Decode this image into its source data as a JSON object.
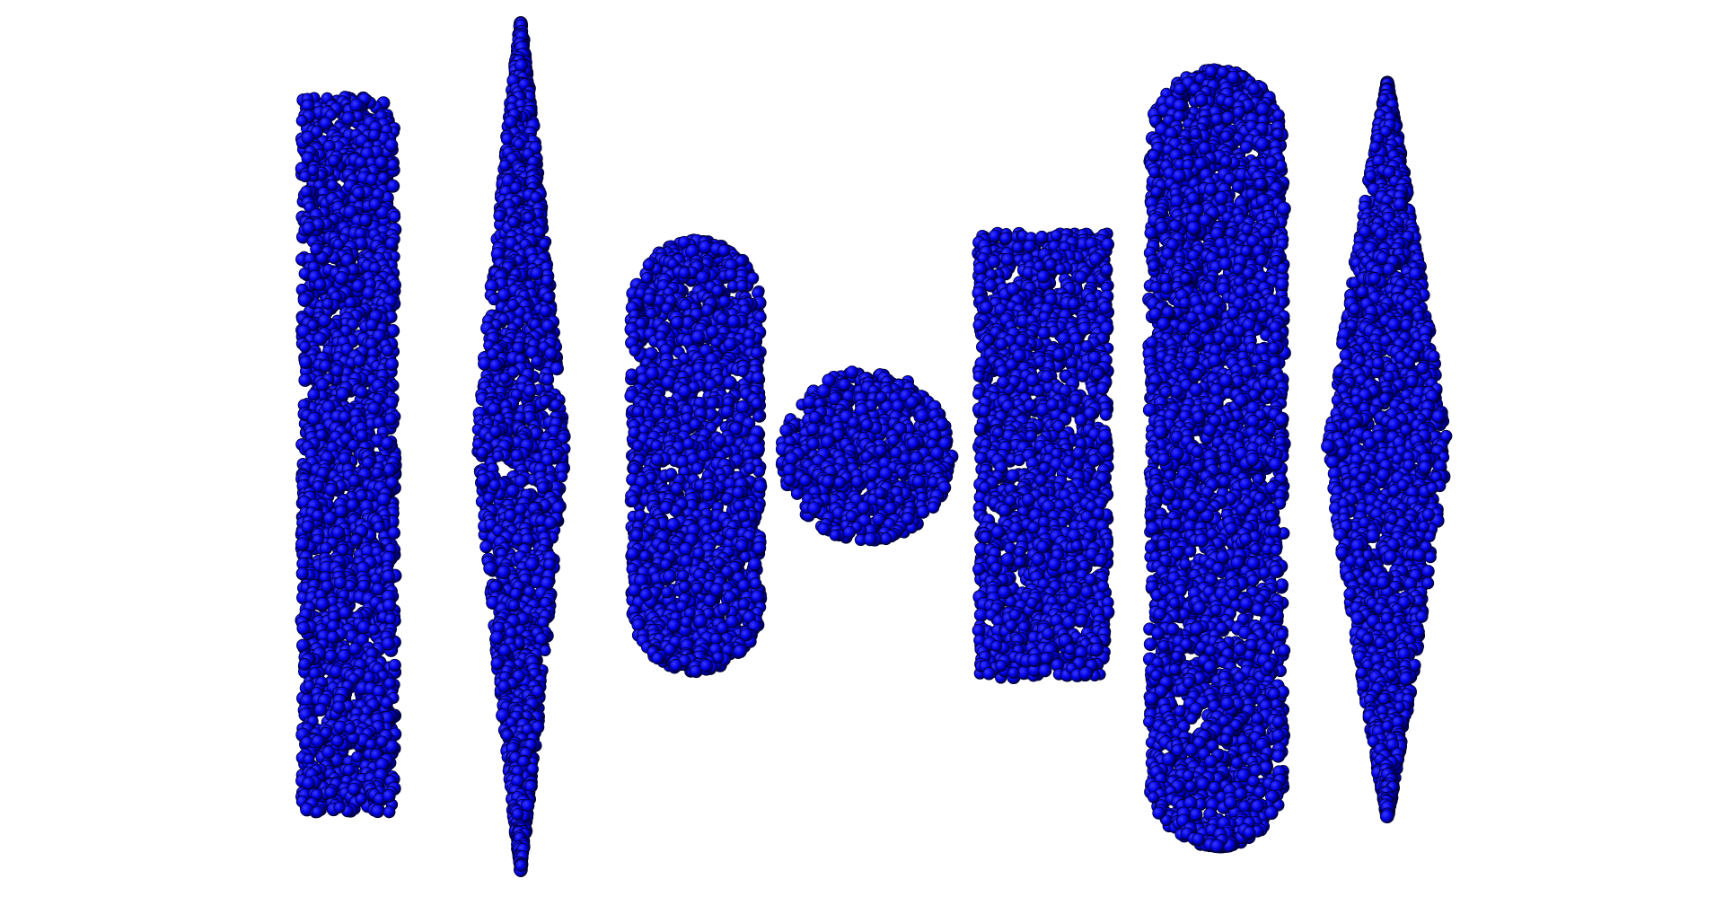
{
  "scene": {
    "background_color": "#ffffff",
    "particle_color": "#0000e6",
    "particle_highlight_color": "#3a3aff",
    "particle_edge_color": "#000033",
    "shapes": [
      {
        "name": "prism",
        "shape": "rectangular-prism"
      },
      {
        "name": "needle",
        "shape": "spindle"
      },
      {
        "name": "capsule",
        "shape": "capsule"
      },
      {
        "name": "sphere",
        "shape": "sphere"
      },
      {
        "name": "box",
        "shape": "rectangular-prism"
      },
      {
        "name": "tall-capsule",
        "shape": "capsule"
      },
      {
        "name": "spindle",
        "shape": "spindle"
      }
    ]
  }
}
